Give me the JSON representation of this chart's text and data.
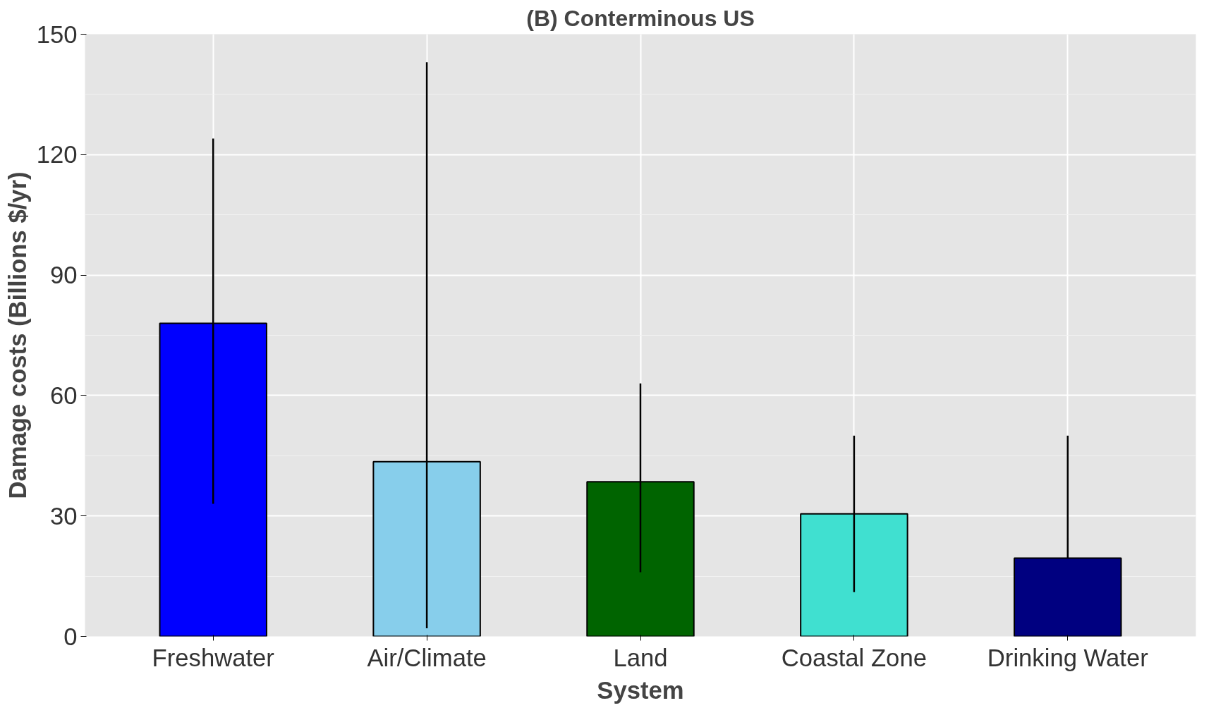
{
  "chart_data": {
    "type": "bar",
    "title": "(B) Conterminous US",
    "xlabel": "System",
    "ylabel": "Damage costs (Billions $/yr)",
    "categories": [
      "Freshwater",
      "Air/Climate",
      "Land",
      "Coastal Zone",
      "Drinking Water"
    ],
    "values": [
      78,
      43.5,
      38.5,
      30.5,
      19.5
    ],
    "colors": [
      "#0000ff",
      "#87ceeb",
      "#006400",
      "#40e0d0",
      "#000080"
    ],
    "errors": [
      [
        33,
        124
      ],
      [
        2,
        143
      ],
      [
        16,
        63
      ],
      [
        11,
        50
      ],
      [
        19.5,
        50
      ]
    ],
    "ylim": [
      0,
      150
    ],
    "yticks": [
      0,
      30,
      60,
      90,
      120,
      150
    ],
    "grid": true
  }
}
